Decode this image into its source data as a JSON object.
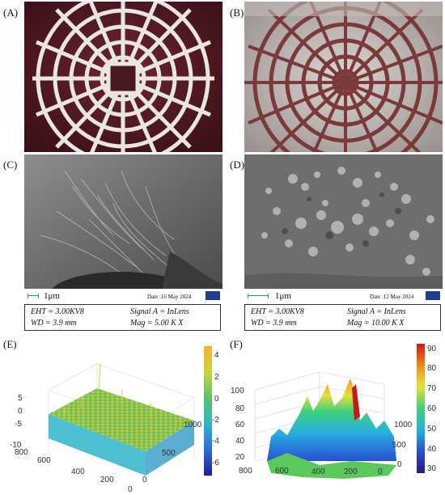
{
  "panels": [
    {
      "letter": "(A)",
      "kind": "photo",
      "subject": "white-lattice-scaffold"
    },
    {
      "letter": "(B)",
      "kind": "photo",
      "subject": "coated-lattice-scaffold"
    },
    {
      "letter": "(C)",
      "kind": "sem",
      "scale_label": "1μm",
      "date": "Date :16 May 2024",
      "eht": "EHT = 3.00KV8",
      "signal": "Signal A = InLens",
      "wd": "WD = 3.9 mm",
      "mag": "Mag = 5.00 K X"
    },
    {
      "letter": "(D)",
      "kind": "sem",
      "scale_label": "1μm",
      "date": "Date :12 May 2024",
      "eht": "EHT = 3.00KV8",
      "signal": "Signal A = InLens",
      "wd": "WD = 3.9 mm",
      "mag": "Mag = 10.00 K X"
    },
    {
      "letter": "(E)",
      "kind": "surface3d",
      "z_ticks": [
        "5",
        "0",
        "-5",
        "-10"
      ],
      "x_ticks": [
        "800",
        "600",
        "400",
        "200",
        "0"
      ],
      "y_ticks": [
        "1000",
        "500",
        "0"
      ],
      "colorbar_ticks": [
        "4",
        "2",
        "0",
        "-2",
        "-4",
        "-6"
      ],
      "colormap": [
        "#1f1f9a",
        "#2a6fd8",
        "#2fb6c8",
        "#58c46a",
        "#c8d43a",
        "#f2b632"
      ]
    },
    {
      "letter": "(F)",
      "kind": "surface3d",
      "z_ticks": [
        "100",
        "80",
        "60",
        "40",
        "20"
      ],
      "x_ticks": [
        "800",
        "600",
        "400",
        "200",
        "0"
      ],
      "y_ticks": [
        "1000",
        "500",
        "0"
      ],
      "colorbar_ticks": [
        "90",
        "80",
        "70",
        "60",
        "50",
        "40",
        "30"
      ],
      "colormap": [
        "#2a1a7a",
        "#2850d0",
        "#27b0e0",
        "#3fd07a",
        "#e6e23a",
        "#f08a20",
        "#c81818"
      ]
    }
  ],
  "icons": {
    "zeiss_logo": "zeiss-logo-icon"
  }
}
